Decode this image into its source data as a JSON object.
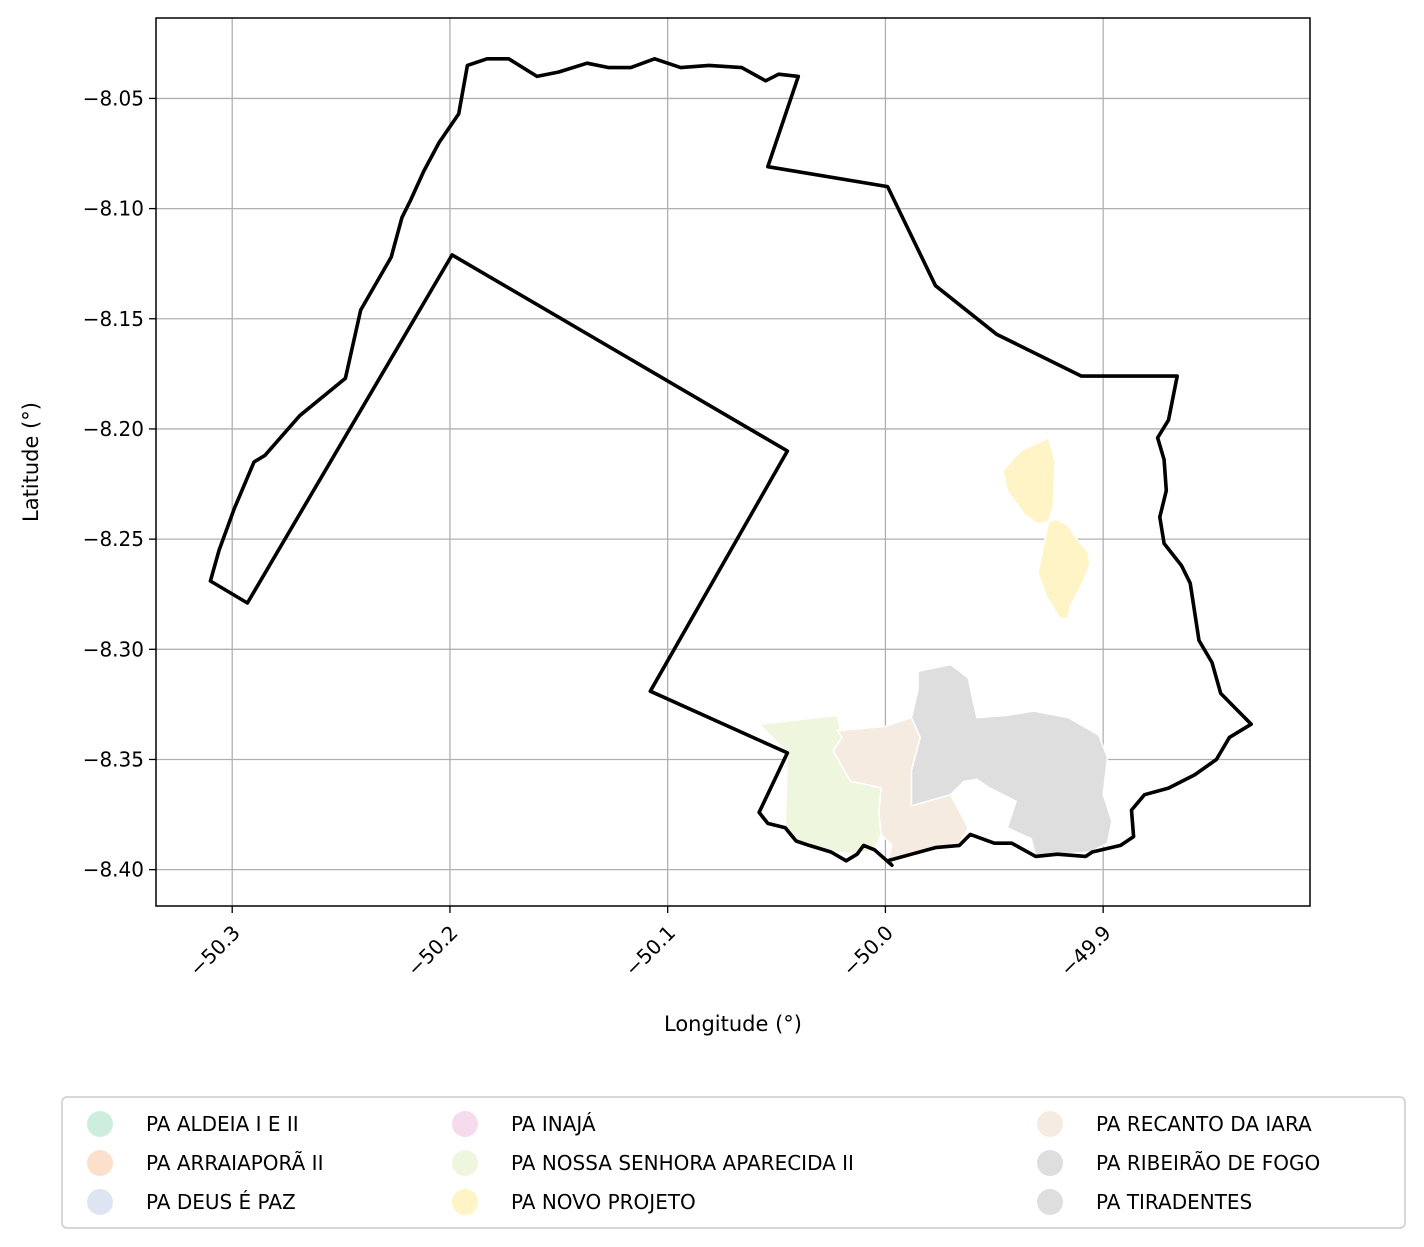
{
  "chart_data": {
    "type": "map",
    "title": "",
    "xlabel": "Longitude (°)",
    "ylabel": "Latitude (°)",
    "xlim": [
      -50.335,
      -49.805
    ],
    "ylim": [
      -8.4165,
      -8.0135
    ],
    "xticks": [
      {
        "value": -50.3,
        "label": "−50.3"
      },
      {
        "value": -50.2,
        "label": "−50.2"
      },
      {
        "value": -50.1,
        "label": "−50.1"
      },
      {
        "value": -50.0,
        "label": "−50.0"
      },
      {
        "value": -49.9,
        "label": "−49.9"
      }
    ],
    "yticks": [
      {
        "value": -8.05,
        "label": "−8.05"
      },
      {
        "value": -8.1,
        "label": "−8.10"
      },
      {
        "value": -8.15,
        "label": "−8.15"
      },
      {
        "value": -8.2,
        "label": "−8.20"
      },
      {
        "value": -8.25,
        "label": "−8.25"
      },
      {
        "value": -8.3,
        "label": "−8.30"
      },
      {
        "value": -8.35,
        "label": "−8.35"
      },
      {
        "value": -8.4,
        "label": "−8.40"
      }
    ],
    "grid": true,
    "legend_position": "bottom",
    "boundary": {
      "color": "#000000",
      "points": [
        [
          -50.196,
          -8.057
        ],
        [
          -50.192,
          -8.035
        ],
        [
          -50.183,
          -8.032
        ],
        [
          -50.173,
          -8.032
        ],
        [
          -50.16,
          -8.04
        ],
        [
          -50.15,
          -8.038
        ],
        [
          -50.137,
          -8.034
        ],
        [
          -50.127,
          -8.036
        ],
        [
          -50.117,
          -8.036
        ],
        [
          -50.106,
          -8.032
        ],
        [
          -50.094,
          -8.036
        ],
        [
          -50.081,
          -8.035
        ],
        [
          -50.066,
          -8.036
        ],
        [
          -50.055,
          -8.042
        ],
        [
          -50.049,
          -8.039
        ],
        [
          -50.04,
          -8.04
        ],
        [
          -50.054,
          -8.081
        ],
        [
          -49.999,
          -8.09
        ],
        [
          -49.977,
          -8.135
        ],
        [
          -49.949,
          -8.157
        ],
        [
          -49.91,
          -8.176
        ],
        [
          -49.866,
          -8.176
        ],
        [
          -49.87,
          -8.196
        ],
        [
          -49.875,
          -8.204
        ],
        [
          -49.872,
          -8.214
        ],
        [
          -49.871,
          -8.228
        ],
        [
          -49.874,
          -8.24
        ],
        [
          -49.872,
          -8.252
        ],
        [
          -49.864,
          -8.262
        ],
        [
          -49.86,
          -8.27
        ],
        [
          -49.858,
          -8.283
        ],
        [
          -49.856,
          -8.296
        ],
        [
          -49.85,
          -8.306
        ],
        [
          -49.846,
          -8.32
        ],
        [
          -49.838,
          -8.328
        ],
        [
          -49.832,
          -8.334
        ],
        [
          -49.842,
          -8.34
        ],
        [
          -49.848,
          -8.35
        ],
        [
          -49.858,
          -8.357
        ],
        [
          -49.87,
          -8.363
        ],
        [
          -49.881,
          -8.366
        ],
        [
          -49.887,
          -8.373
        ],
        [
          -49.886,
          -8.385
        ],
        [
          -49.892,
          -8.389
        ],
        [
          -49.905,
          -8.392
        ],
        [
          -49.908,
          -8.394
        ],
        [
          -49.921,
          -8.393
        ],
        [
          -49.931,
          -8.394
        ],
        [
          -49.942,
          -8.388
        ],
        [
          -49.95,
          -8.388
        ],
        [
          -49.961,
          -8.384
        ],
        [
          -49.966,
          -8.389
        ],
        [
          -49.977,
          -8.39
        ],
        [
          -49.988,
          -8.393
        ],
        [
          -49.999,
          -8.396
        ],
        [
          -49.997,
          -8.398
        ],
        [
          -50.005,
          -8.391
        ],
        [
          -50.01,
          -8.389
        ],
        [
          -50.013,
          -8.393
        ],
        [
          -50.018,
          -8.396
        ],
        [
          -50.025,
          -8.392
        ],
        [
          -50.035,
          -8.389
        ],
        [
          -50.041,
          -8.387
        ],
        [
          -50.046,
          -8.381
        ],
        [
          -50.054,
          -8.379
        ],
        [
          -50.058,
          -8.374
        ],
        [
          -50.045,
          -8.347
        ],
        [
          -50.108,
          -8.319
        ],
        [
          -50.045,
          -8.21
        ],
        [
          -50.199,
          -8.121
        ],
        [
          -50.293,
          -8.279
        ],
        [
          -50.31,
          -8.269
        ],
        [
          -50.306,
          -8.255
        ],
        [
          -50.299,
          -8.236
        ],
        [
          -50.29,
          -8.215
        ],
        [
          -50.285,
          -8.212
        ],
        [
          -50.269,
          -8.194
        ],
        [
          -50.248,
          -8.177
        ],
        [
          -50.241,
          -8.146
        ],
        [
          -50.227,
          -8.122
        ],
        [
          -50.222,
          -8.104
        ],
        [
          -50.218,
          -8.096
        ],
        [
          -50.212,
          -8.083
        ],
        [
          -50.205,
          -8.07
        ]
      ]
    },
    "regions": [
      {
        "name": "PA ALDEIA I E II",
        "color": "#cdeedd",
        "polygon": null
      },
      {
        "name": "PA ARRAIAPORÃ II",
        "color": "#fde0cb",
        "polygon": null
      },
      {
        "name": "PA DEUS É PAZ",
        "color": "#dde5f3",
        "polygon": null
      },
      {
        "name": "PA INAJÁ",
        "color": "#f6dbec",
        "polygon": null
      },
      {
        "name": "PA NOSSA SENHORA APARECIDA II",
        "color": "#eef7de",
        "polygon": [
          [
            -50.058,
            -8.334
          ],
          [
            -50.04,
            -8.332
          ],
          [
            -50.022,
            -8.33
          ],
          [
            -50.02,
            -8.34
          ],
          [
            -50.024,
            -8.346
          ],
          [
            -50.02,
            -8.353
          ],
          [
            -50.016,
            -8.36
          ],
          [
            -50.01,
            -8.361
          ],
          [
            -50.002,
            -8.363
          ],
          [
            -50.003,
            -8.374
          ],
          [
            -50.002,
            -8.384
          ],
          [
            -50.005,
            -8.391
          ],
          [
            -50.013,
            -8.393
          ],
          [
            -50.025,
            -8.392
          ],
          [
            -50.035,
            -8.389
          ],
          [
            -50.041,
            -8.387
          ],
          [
            -50.046,
            -8.381
          ],
          [
            -50.045,
            -8.347
          ],
          [
            -50.052,
            -8.34
          ]
        ]
      },
      {
        "name": "PA NOVO PROJETO",
        "color": "#fff4c6",
        "polygon": [
          [
            -49.925,
            -8.204
          ],
          [
            -49.938,
            -8.21
          ],
          [
            -49.946,
            -8.219
          ],
          [
            -49.944,
            -8.228
          ],
          [
            -49.936,
            -8.239
          ],
          [
            -49.93,
            -8.243
          ],
          [
            -49.921,
            -8.241
          ],
          [
            -49.916,
            -8.244
          ],
          [
            -49.912,
            -8.25
          ],
          [
            -49.907,
            -8.256
          ],
          [
            -49.906,
            -8.261
          ],
          [
            -49.909,
            -8.269
          ],
          [
            -49.915,
            -8.28
          ],
          [
            -49.916,
            -8.286
          ],
          [
            -49.92,
            -8.286
          ],
          [
            -49.926,
            -8.276
          ],
          [
            -49.93,
            -8.265
          ],
          [
            -49.928,
            -8.256
          ],
          [
            -49.926,
            -8.246
          ],
          [
            -49.923,
            -8.235
          ],
          [
            -49.922,
            -8.215
          ]
        ]
      },
      {
        "name": "PA RECANTO DA IARA",
        "color": "#f5ebe0",
        "polygon": [
          [
            -50.022,
            -8.337
          ],
          [
            -50.0,
            -8.335
          ],
          [
            -49.988,
            -8.331
          ],
          [
            -49.984,
            -8.34
          ],
          [
            -49.988,
            -8.355
          ],
          [
            -49.988,
            -8.371
          ],
          [
            -49.97,
            -8.366
          ],
          [
            -49.962,
            -8.381
          ],
          [
            -49.966,
            -8.388
          ],
          [
            -49.977,
            -8.39
          ],
          [
            -49.988,
            -8.393
          ],
          [
            -49.999,
            -8.396
          ],
          [
            -49.997,
            -8.389
          ],
          [
            -50.002,
            -8.384
          ],
          [
            -50.003,
            -8.374
          ],
          [
            -50.002,
            -8.363
          ],
          [
            -50.01,
            -8.361
          ],
          [
            -50.016,
            -8.36
          ],
          [
            -50.02,
            -8.353
          ],
          [
            -50.024,
            -8.346
          ],
          [
            -50.02,
            -8.34
          ]
        ]
      },
      {
        "name": "PA RIBEIRÃO DE FOGO",
        "color": "#dedede",
        "polygon": [
          [
            -49.985,
            -8.31
          ],
          [
            -49.97,
            -8.307
          ],
          [
            -49.962,
            -8.313
          ],
          [
            -49.96,
            -8.322
          ],
          [
            -49.958,
            -8.331
          ],
          [
            -49.944,
            -8.33
          ],
          [
            -49.932,
            -8.328
          ],
          [
            -49.916,
            -8.331
          ],
          [
            -49.902,
            -8.339
          ],
          [
            -49.898,
            -8.349
          ],
          [
            -49.9,
            -8.366
          ],
          [
            -49.896,
            -8.378
          ],
          [
            -49.898,
            -8.388
          ],
          [
            -49.906,
            -8.392
          ],
          [
            -49.92,
            -8.393
          ],
          [
            -49.931,
            -8.394
          ],
          [
            -49.933,
            -8.386
          ],
          [
            -49.944,
            -8.381
          ],
          [
            -49.94,
            -8.369
          ],
          [
            -49.952,
            -8.363
          ],
          [
            -49.958,
            -8.359
          ],
          [
            -49.964,
            -8.36
          ],
          [
            -49.97,
            -8.366
          ],
          [
            -49.988,
            -8.371
          ],
          [
            -49.988,
            -8.355
          ],
          [
            -49.984,
            -8.34
          ],
          [
            -49.988,
            -8.331
          ],
          [
            -49.985,
            -8.318
          ]
        ]
      },
      {
        "name": "PA TIRADENTES",
        "color": "#dedede",
        "polygon": null
      }
    ]
  },
  "legend": {
    "columns": [
      [
        "PA ALDEIA I E II",
        "PA ARRAIAPORÃ II",
        "PA DEUS É PAZ"
      ],
      [
        "PA INAJÁ",
        "PA NOSSA SENHORA APARECIDA II",
        "PA NOVO PROJETO"
      ],
      [
        "PA RECANTO DA IARA",
        "PA RIBEIRÃO DE FOGO",
        "PA TIRADENTES"
      ]
    ]
  }
}
